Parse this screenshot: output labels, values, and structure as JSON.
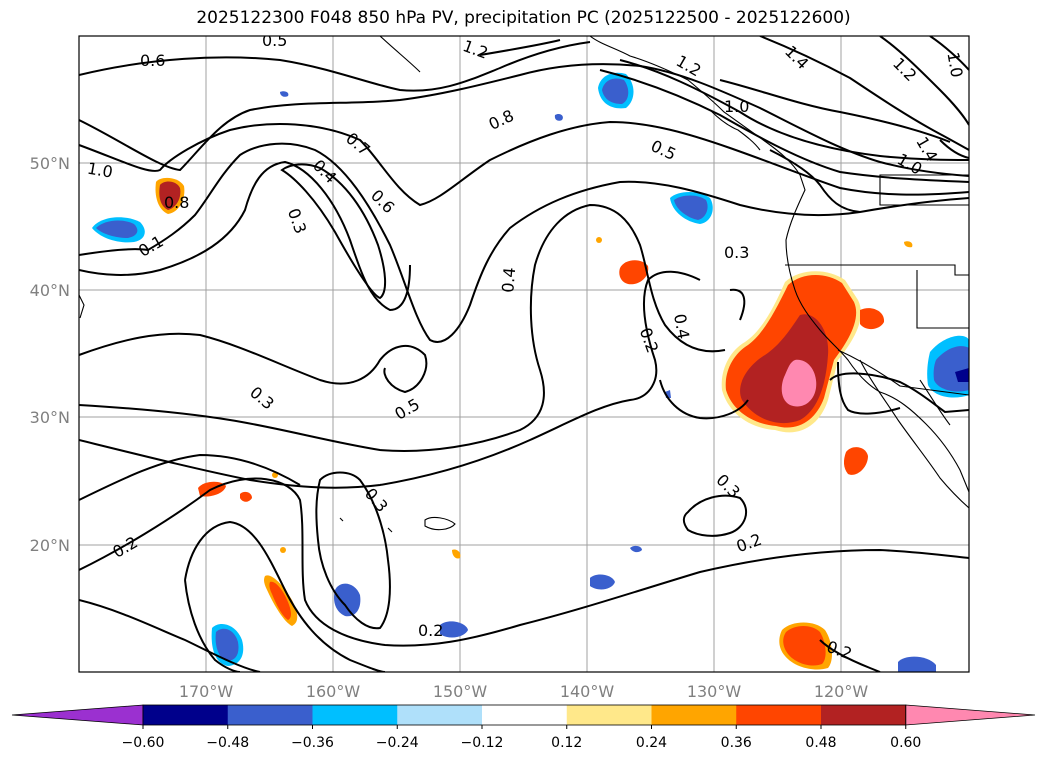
{
  "title": "2025122300 F048 850 hPa PV, precipitation PC (2025122500 - 2025122600)",
  "map": {
    "lon_range": [
      -180,
      -110
    ],
    "lat_range": [
      10,
      60
    ],
    "lon_labels": [
      "170°W",
      "160°W",
      "150°W",
      "140°W",
      "130°W",
      "120°W"
    ],
    "lat_labels": [
      "50°N",
      "40°N",
      "30°N",
      "20°N"
    ],
    "grid": true
  },
  "contour_labels": [
    "0.5",
    "1.2",
    "0.6",
    "1.4",
    "1.2",
    "1.0",
    "1.2",
    "0.8",
    "1.0",
    "0.7",
    "0.5",
    "1.0",
    "1.4",
    "1.0",
    "0.4",
    "0.8",
    "0.6",
    "0.1",
    "0.3",
    "0.3",
    "0.4",
    "0.4",
    "0.2",
    "0.5",
    "0.3",
    "0.3",
    "0.3",
    "0.2",
    "0.2",
    "0.2",
    "0.2"
  ],
  "colorbar": {
    "ticks": [
      "−0.60",
      "−0.48",
      "−0.36",
      "−0.24",
      "−0.12",
      "0.12",
      "0.24",
      "0.36",
      "0.48",
      "0.60"
    ],
    "colors": [
      "#9b30d0",
      "#00008b",
      "#3a5fcd",
      "#00bfff",
      "#afe0fa",
      "#ffffff",
      "#ffe88a",
      "#ffa500",
      "#ff4500",
      "#b22222",
      "#ff88b0"
    ]
  }
}
